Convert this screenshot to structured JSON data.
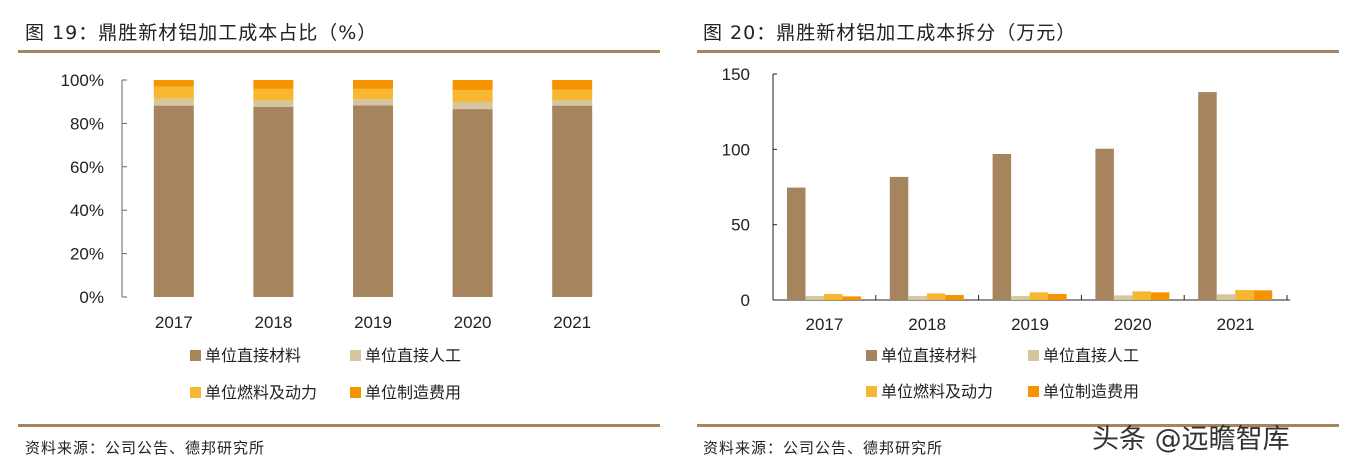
{
  "watermark": "头条 @远瞻智库",
  "colors": {
    "materials": "#a6845e",
    "labor": "#d6c6a0",
    "fuel": "#f7b731",
    "manufacturing": "#f59300",
    "rule": "#a6845e"
  },
  "chart_data": [
    {
      "type": "bar",
      "stacked": true,
      "title": "图 19：鼎胜新材铝加工成本占比（%）",
      "source": "资料来源：公司公告、德邦研究所",
      "categories": [
        "2017",
        "2018",
        "2019",
        "2020",
        "2021"
      ],
      "ylim": [
        0,
        100
      ],
      "yticks": [
        "0%",
        "20%",
        "40%",
        "60%",
        "80%",
        "100%"
      ],
      "legend_position": "bottom",
      "series": [
        {
          "name": "单位直接材料",
          "values": [
            88.2,
            87.7,
            88.3,
            86.6,
            88.2
          ]
        },
        {
          "name": "单位直接人工",
          "values": [
            3.2,
            2.8,
            2.8,
            3.3,
            2.4
          ]
        },
        {
          "name": "单位燃料及动力",
          "values": [
            5.5,
            5.4,
            4.8,
            5.4,
            4.9
          ]
        },
        {
          "name": "单位制造费用",
          "values": [
            3.1,
            4.1,
            4.1,
            4.7,
            4.5
          ]
        }
      ]
    },
    {
      "type": "bar",
      "stacked": false,
      "title": "图 20：鼎胜新材铝加工成本拆分（万元）",
      "source": "资料来源：公司公告、德邦研究所",
      "categories": [
        "2017",
        "2018",
        "2019",
        "2020",
        "2021"
      ],
      "ylim": [
        0,
        150
      ],
      "yticks": [
        "0",
        "50",
        "100",
        "150"
      ],
      "legend_position": "bottom",
      "series": [
        {
          "name": "单位直接材料",
          "values": [
            74.6,
            81.7,
            96.9,
            100.4,
            138
          ]
        },
        {
          "name": "单位直接人工",
          "values": [
            2.6,
            2.6,
            2.6,
            3.1,
            3.8
          ]
        },
        {
          "name": "单位燃料及动力",
          "values": [
            4.0,
            4.4,
            5.1,
            5.7,
            6.6
          ]
        },
        {
          "name": "单位制造费用",
          "values": [
            2.4,
            3.3,
            4.0,
            5.1,
            6.4
          ]
        }
      ]
    }
  ]
}
